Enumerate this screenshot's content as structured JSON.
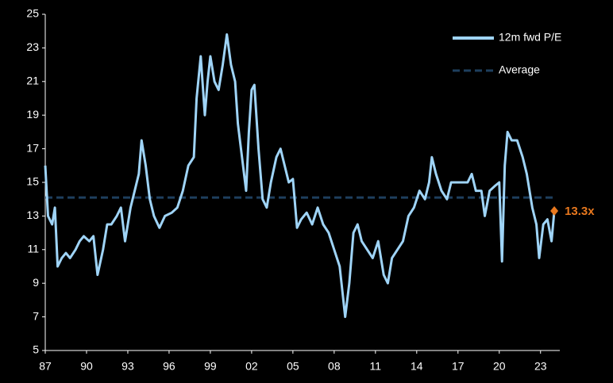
{
  "chart_data": {
    "type": "line",
    "x": [
      1987.0,
      1987.2,
      1987.5,
      1987.7,
      1987.9,
      1988.2,
      1988.5,
      1988.8,
      1989.2,
      1989.5,
      1989.8,
      1990.2,
      1990.5,
      1990.8,
      1991.2,
      1991.5,
      1991.8,
      1992.2,
      1992.5,
      1992.8,
      1993.2,
      1993.5,
      1993.8,
      1994.0,
      1994.3,
      1994.6,
      1994.9,
      1995.3,
      1995.7,
      1996.2,
      1996.6,
      1997.0,
      1997.4,
      1997.8,
      1998.0,
      1998.3,
      1998.6,
      1998.8,
      1999.0,
      1999.3,
      1999.6,
      1999.9,
      2000.2,
      2000.5,
      2000.8,
      2001.0,
      2001.3,
      2001.6,
      2001.8,
      2002.0,
      2002.2,
      2002.5,
      2002.8,
      2003.1,
      2003.4,
      2003.8,
      2004.1,
      2004.4,
      2004.7,
      2005.0,
      2005.3,
      2005.6,
      2006.0,
      2006.4,
      2006.8,
      2007.2,
      2007.6,
      2008.0,
      2008.4,
      2008.8,
      2009.1,
      2009.4,
      2009.7,
      2010.0,
      2010.4,
      2010.8,
      2011.2,
      2011.6,
      2011.9,
      2012.2,
      2012.6,
      2013.0,
      2013.4,
      2013.8,
      2014.2,
      2014.6,
      2014.9,
      2015.1,
      2015.4,
      2015.8,
      2016.2,
      2016.5,
      2016.9,
      2017.3,
      2017.7,
      2018.0,
      2018.3,
      2018.7,
      2018.95,
      2019.3,
      2019.7,
      2020.0,
      2020.2,
      2020.4,
      2020.6,
      2020.9,
      2021.3,
      2021.7,
      2022.0,
      2022.4,
      2022.7,
      2022.9,
      2023.2,
      2023.5,
      2023.8,
      2024.0
    ],
    "series": [
      {
        "name": "12m fwd P/E",
        "color": "#9fd4f7",
        "values": [
          16,
          13,
          12.5,
          13.5,
          10,
          10.5,
          10.8,
          10.5,
          11,
          11.5,
          11.8,
          11.5,
          11.8,
          9.5,
          11,
          12.5,
          12.5,
          13,
          13.5,
          11.5,
          13.5,
          14.5,
          15.5,
          17.5,
          16,
          14,
          13,
          12.3,
          13,
          13.2,
          13.5,
          14.5,
          16,
          16.5,
          20,
          22.5,
          19,
          21,
          22.5,
          21,
          20.5,
          22,
          23.8,
          22,
          21,
          18.5,
          16.5,
          14.5,
          18,
          20.5,
          20.8,
          17,
          14,
          13.5,
          15,
          16.5,
          17,
          16,
          15,
          15.2,
          12.3,
          12.8,
          13.2,
          12.5,
          13.5,
          12.5,
          12,
          11,
          10,
          7,
          9,
          12,
          12.5,
          11.5,
          11,
          10.5,
          11.5,
          9.5,
          9,
          10.5,
          11,
          11.5,
          13,
          13.5,
          14.5,
          14,
          15,
          16.5,
          15.5,
          14.5,
          14,
          15,
          15,
          15,
          15,
          15.5,
          14.5,
          14.5,
          13,
          14.5,
          14.8,
          15,
          10.3,
          16,
          18,
          17.5,
          17.5,
          16.5,
          15.5,
          13.5,
          12.5,
          10.5,
          12.5,
          12.8,
          11.5,
          13.3
        ]
      }
    ],
    "reference_line": {
      "name": "Average",
      "value": 14.1,
      "color": "#1e3f5e",
      "dashed": true
    },
    "annotation": {
      "x": 2024.0,
      "value": 13.3,
      "label": "13.3x",
      "color": "#e8781e"
    },
    "xlim": [
      1987,
      2024.4
    ],
    "xticks": [
      {
        "value": 1987,
        "label": "87"
      },
      {
        "value": 1990,
        "label": "90"
      },
      {
        "value": 1993,
        "label": "93"
      },
      {
        "value": 1996,
        "label": "96"
      },
      {
        "value": 1999,
        "label": "99"
      },
      {
        "value": 2002,
        "label": "02"
      },
      {
        "value": 2005,
        "label": "05"
      },
      {
        "value": 2008,
        "label": "08"
      },
      {
        "value": 2011,
        "label": "11"
      },
      {
        "value": 2014,
        "label": "14"
      },
      {
        "value": 2017,
        "label": "17"
      },
      {
        "value": 2020,
        "label": "20"
      },
      {
        "value": 2023,
        "label": "23"
      }
    ],
    "ylim": [
      5,
      25
    ],
    "yticks": [
      5,
      7,
      9,
      11,
      13,
      15,
      17,
      19,
      21,
      23,
      25
    ],
    "legend": "top-right"
  }
}
